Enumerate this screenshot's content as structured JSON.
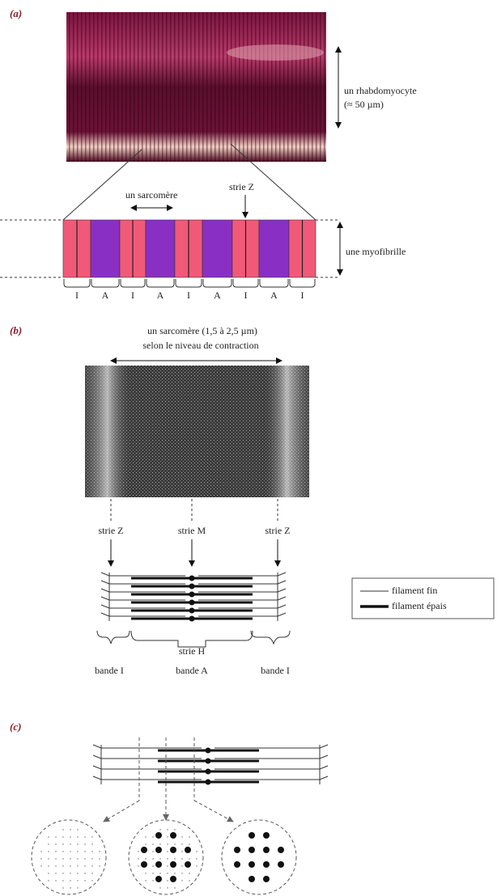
{
  "panel_a": {
    "label": "(a)",
    "cell_label": "un rhabdomyocyte",
    "cell_size": "(≈ 50 µm)",
    "sarcomere_label": "un sarcomère",
    "z_line_label": "strie Z",
    "myofibril_label": "une myofibrille",
    "bands": [
      "I",
      "A",
      "I",
      "A",
      "I",
      "A",
      "I",
      "A",
      "I"
    ]
  },
  "panel_b": {
    "label": "(b)",
    "sarcomere_size": "un sarcomère (1,5 à 2,5 µm)",
    "sarcomere_note": "selon le niveau de contraction",
    "z_line_left": "strie Z",
    "m_line": "strie M",
    "z_line_right": "strie Z",
    "h_zone": "strie H",
    "band_i_left": "bande I",
    "band_a": "bande A",
    "band_i_right": "bande I",
    "legend": {
      "thin": "filament fin",
      "thick": "filament épais"
    }
  },
  "panel_c": {
    "label": "(c)"
  }
}
